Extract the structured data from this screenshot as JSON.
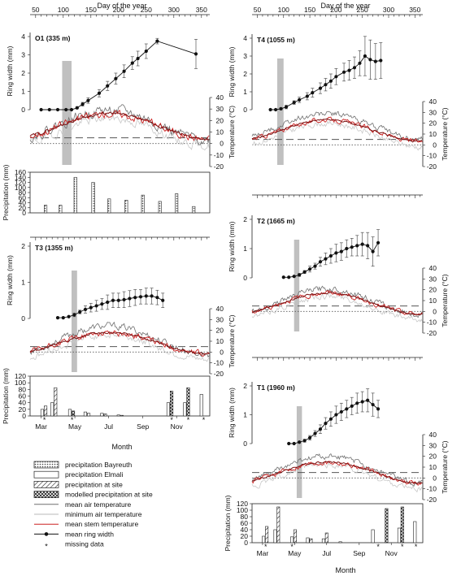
{
  "figure": {
    "top_axis_label": "Day of the year",
    "bottom_axis_label": "Month",
    "axis_labels": {
      "ring_width": "Ring width (mm)",
      "precipitation": "Precipitation (mm)",
      "temperature": "Temperature (°C)"
    },
    "legend": [
      {
        "label": "precipitation Bayreuth",
        "kind": "bar-dots"
      },
      {
        "label": "precipitation Elmali",
        "kind": "bar-open"
      },
      {
        "label": "precipitation at site",
        "kind": "bar-hatch"
      },
      {
        "label": "modelled precipitation at site",
        "kind": "bar-cross"
      },
      {
        "label": "mean air temperature",
        "kind": "line-dark"
      },
      {
        "label": "minimum air temperature",
        "kind": "line-light"
      },
      {
        "label": "mean stem temperature",
        "kind": "line-red"
      },
      {
        "label": "mean ring width",
        "kind": "line-dot"
      },
      {
        "label": "missing data",
        "kind": "star"
      }
    ],
    "colors": {
      "mean_air": "#6e6e6e",
      "min_air": "#c8c8c8",
      "stem": "#cc2020",
      "stem_dark": "#7a1010",
      "window": "#c0c0c0",
      "ring": "#111111"
    }
  },
  "chart_data": [
    {
      "type": "line",
      "panel": "O1",
      "title": "O1 (335 m)",
      "x_label": "Day of the year",
      "x_ticks": [
        50,
        100,
        150,
        200,
        250,
        300,
        350
      ],
      "ring_width": {
        "ylabel": "Ring width (mm)",
        "ylim": [
          0,
          4
        ],
        "yticks": [
          0,
          1,
          2,
          3,
          4
        ],
        "x": [
          60,
          75,
          90,
          105,
          115,
          125,
          135,
          145,
          165,
          180,
          195,
          210,
          225,
          235,
          250,
          270,
          340
        ],
        "y": [
          0,
          0,
          0,
          0,
          0,
          0.1,
          0.3,
          0.5,
          0.9,
          1.3,
          1.7,
          2.1,
          2.55,
          2.8,
          3.2,
          3.75,
          3.05
        ],
        "err": [
          0,
          0,
          0,
          0,
          0,
          0.05,
          0.1,
          0.15,
          0.2,
          0.25,
          0.3,
          0.35,
          0.35,
          0.4,
          0.4,
          0.15,
          0.8
        ]
      },
      "temperature": {
        "ylabel": "Temperature (°C)",
        "ylim": [
          -20,
          40
        ],
        "yticks": [
          -20,
          -10,
          0,
          10,
          20,
          30,
          40
        ],
        "mean_air": {
          "base": 16,
          "amp": 13,
          "noise": 8
        },
        "min_air": {
          "base": 10,
          "amp": 12,
          "noise": 7
        },
        "stem": {
          "base": 15,
          "amp": 11,
          "noise": 6
        },
        "dashed_ref": 5,
        "dotted_ref": 0
      },
      "window": [
        98,
        115
      ],
      "precipitation": {
        "ylabel": "Precipitation (mm)",
        "ylim": [
          0,
          160
        ],
        "yticks": [
          0,
          20,
          40,
          60,
          80,
          100,
          120,
          140,
          160
        ],
        "bars": [
          {
            "x": 68,
            "v": 30,
            "kind": "dots"
          },
          {
            "x": 95,
            "v": 30,
            "kind": "dots"
          },
          {
            "x": 122,
            "v": 140,
            "kind": "dots"
          },
          {
            "x": 154,
            "v": 120,
            "kind": "dots"
          },
          {
            "x": 183,
            "v": 55,
            "kind": "dots"
          },
          {
            "x": 214,
            "v": 50,
            "kind": "dots"
          },
          {
            "x": 244,
            "v": 70,
            "kind": "dots"
          },
          {
            "x": 275,
            "v": 45,
            "kind": "dots"
          },
          {
            "x": 305,
            "v": 75,
            "kind": "dots"
          },
          {
            "x": 336,
            "v": 25,
            "kind": "dots"
          }
        ]
      }
    },
    {
      "type": "line",
      "panel": "T3",
      "title": "T3 (1355 m)",
      "ring_width": {
        "ylabel": "Ring width (mm)",
        "ylim": [
          0,
          2
        ],
        "yticks": [
          0,
          1,
          2
        ],
        "x": [
          90,
          100,
          110,
          120,
          130,
          140,
          150,
          160,
          170,
          180,
          190,
          200,
          210,
          220,
          230,
          240,
          250,
          260,
          270,
          280
        ],
        "y": [
          0.02,
          0.02,
          0.05,
          0.1,
          0.18,
          0.25,
          0.3,
          0.35,
          0.4,
          0.45,
          0.5,
          0.5,
          0.52,
          0.55,
          0.58,
          0.6,
          0.62,
          0.62,
          0.58,
          0.5
        ],
        "err": [
          0,
          0,
          0,
          0.05,
          0.05,
          0.1,
          0.12,
          0.15,
          0.15,
          0.2,
          0.2,
          0.2,
          0.22,
          0.22,
          0.22,
          0.2,
          0.22,
          0.22,
          0.2,
          0.2
        ]
      },
      "temperature": {
        "ylabel": "Temperature (°C)",
        "ylim": [
          -20,
          40
        ],
        "yticks": [
          -20,
          -10,
          0,
          10,
          20,
          30,
          40
        ],
        "mean_air": {
          "base": 11,
          "amp": 13,
          "noise": 6
        },
        "min_air": {
          "base": 4,
          "amp": 12,
          "noise": 6
        },
        "stem": {
          "base": 8,
          "amp": 10,
          "noise": 5
        },
        "dashed_ref": 5,
        "dotted_ref": 0
      },
      "window": [
        115,
        125
      ],
      "precipitation": {
        "ylabel": "Precipitation (mm)",
        "ylim": [
          0,
          120
        ],
        "yticks": [
          0,
          20,
          40,
          60,
          80,
          100,
          120
        ],
        "bars": [
          {
            "x": 62,
            "v": 20,
            "kind": "open"
          },
          {
            "x": 68,
            "v": 30,
            "kind": "hatch"
          },
          {
            "x": 80,
            "v": 40,
            "kind": "open"
          },
          {
            "x": 86,
            "v": 85,
            "kind": "hatch"
          },
          {
            "x": 112,
            "v": 20,
            "kind": "open"
          },
          {
            "x": 118,
            "v": 15,
            "kind": "cross"
          },
          {
            "x": 140,
            "v": 12,
            "kind": "open"
          },
          {
            "x": 146,
            "v": 8,
            "kind": "hatch"
          },
          {
            "x": 170,
            "v": 8,
            "kind": "open"
          },
          {
            "x": 176,
            "v": 6,
            "kind": "hatch"
          },
          {
            "x": 200,
            "v": 3,
            "kind": "open"
          },
          {
            "x": 206,
            "v": 2,
            "kind": "hatch"
          },
          {
            "x": 290,
            "v": 40,
            "kind": "open"
          },
          {
            "x": 296,
            "v": 75,
            "kind": "cross"
          },
          {
            "x": 320,
            "v": 40,
            "kind": "open"
          },
          {
            "x": 326,
            "v": 85,
            "kind": "cross"
          },
          {
            "x": 350,
            "v": 65,
            "kind": "open"
          }
        ],
        "missing_x": [
          66,
          116,
          296,
          326,
          354
        ]
      },
      "month_ticks": [
        "Mar",
        "May",
        "Jul",
        "Sep",
        "Nov"
      ],
      "month_x": [
        60,
        121,
        182,
        244,
        305
      ],
      "x_label": "Month"
    },
    {
      "type": "line",
      "panel": "T4",
      "title": "T4 (1055 m)",
      "x_label": "Day of the year",
      "x_ticks": [
        50,
        100,
        150,
        200,
        250,
        300,
        350
      ],
      "ring_width": {
        "ylabel": "Ring width (mm)",
        "ylim": [
          0,
          4
        ],
        "yticks": [
          0,
          1,
          2,
          3,
          4
        ],
        "x": [
          75,
          85,
          95,
          105,
          120,
          130,
          145,
          155,
          170,
          180,
          190,
          200,
          215,
          225,
          235,
          245,
          255,
          265,
          275,
          285
        ],
        "y": [
          0,
          0,
          0.05,
          0.15,
          0.4,
          0.55,
          0.75,
          0.95,
          1.2,
          1.4,
          1.6,
          1.85,
          2.1,
          2.2,
          2.35,
          2.6,
          3.0,
          2.8,
          2.7,
          2.75
        ],
        "err": [
          0,
          0,
          0.05,
          0.1,
          0.1,
          0.15,
          0.2,
          0.25,
          0.3,
          0.35,
          0.4,
          0.45,
          0.5,
          0.55,
          0.6,
          0.7,
          1.1,
          1.1,
          1.0,
          1.0
        ]
      },
      "temperature": {
        "ylabel": "Temperature (°C)",
        "ylim": [
          -20,
          40
        ],
        "yticks": [
          -20,
          -10,
          0,
          10,
          20,
          30,
          40
        ],
        "mean_air": {
          "base": 17,
          "amp": 12,
          "noise": 5
        },
        "min_air": {
          "base": 9,
          "amp": 11,
          "noise": 5
        },
        "stem": {
          "base": 13,
          "amp": 10,
          "noise": 4
        },
        "dashed_ref": 5,
        "dotted_ref": 0
      },
      "window": [
        88,
        100
      ]
    },
    {
      "type": "line",
      "panel": "T2",
      "title": "T2 (1665 m)",
      "ring_width": {
        "ylabel": "Ring width (mm)",
        "ylim": [
          0,
          2
        ],
        "yticks": [
          0,
          1,
          2
        ],
        "x": [
          100,
          110,
          120,
          130,
          140,
          150,
          160,
          170,
          180,
          190,
          200,
          210,
          220,
          230,
          240,
          250,
          260,
          270,
          280
        ],
        "y": [
          0.02,
          0.02,
          0.05,
          0.1,
          0.2,
          0.3,
          0.4,
          0.55,
          0.65,
          0.75,
          0.85,
          0.9,
          1.0,
          1.05,
          1.1,
          1.15,
          1.1,
          0.9,
          1.2
        ],
        "err": [
          0,
          0,
          0.02,
          0.05,
          0.05,
          0.1,
          0.1,
          0.15,
          0.2,
          0.25,
          0.3,
          0.3,
          0.3,
          0.3,
          0.35,
          0.4,
          0.45,
          0.5,
          0.45
        ]
      },
      "temperature": {
        "ylabel": "Temperature (°C)",
        "ylim": [
          -20,
          40
        ],
        "yticks": [
          -20,
          -10,
          0,
          10,
          20,
          30,
          40
        ],
        "mean_air": {
          "base": 9,
          "amp": 12,
          "noise": 5
        },
        "min_air": {
          "base": 3,
          "amp": 11,
          "noise": 5
        },
        "stem": {
          "base": 7,
          "amp": 10,
          "noise": 4
        },
        "dashed_ref": 5,
        "dotted_ref": 0
      },
      "window": [
        120,
        130
      ]
    },
    {
      "type": "line",
      "panel": "T1",
      "title": "T1 (1960 m)",
      "ring_width": {
        "ylabel": "Ring width (mm)",
        "ylim": [
          0,
          2
        ],
        "yticks": [
          0,
          1,
          2
        ],
        "x": [
          110,
          120,
          130,
          140,
          150,
          160,
          170,
          180,
          190,
          200,
          210,
          220,
          230,
          240,
          250,
          260,
          270,
          280
        ],
        "y": [
          0,
          0,
          0.05,
          0.1,
          0.2,
          0.35,
          0.5,
          0.7,
          0.85,
          1.0,
          1.1,
          1.2,
          1.3,
          1.4,
          1.45,
          1.5,
          1.35,
          1.2
        ],
        "err": [
          0,
          0,
          0.02,
          0.05,
          0.08,
          0.1,
          0.15,
          0.2,
          0.25,
          0.3,
          0.3,
          0.3,
          0.3,
          0.35,
          0.35,
          0.4,
          0.4,
          0.3
        ]
      },
      "temperature": {
        "ylabel": "Temperature (°C)",
        "ylim": [
          -20,
          40
        ],
        "yticks": [
          -20,
          -10,
          0,
          10,
          20,
          30,
          40
        ],
        "mean_air": {
          "base": 8,
          "amp": 12,
          "noise": 5
        },
        "min_air": {
          "base": 1,
          "amp": 11,
          "noise": 5
        },
        "stem": {
          "base": 5,
          "amp": 10,
          "noise": 4
        },
        "dashed_ref": 5,
        "dotted_ref": 0
      },
      "window": [
        125,
        135
      ],
      "precipitation": {
        "ylabel": "Precipitation (mm)",
        "ylim": [
          0,
          120
        ],
        "yticks": [
          0,
          20,
          40,
          60,
          80,
          100,
          120
        ],
        "bars": [
          {
            "x": 62,
            "v": 20,
            "kind": "open"
          },
          {
            "x": 68,
            "v": 50,
            "kind": "hatch"
          },
          {
            "x": 84,
            "v": 40,
            "kind": "open"
          },
          {
            "x": 90,
            "v": 110,
            "kind": "hatch"
          },
          {
            "x": 116,
            "v": 18,
            "kind": "open"
          },
          {
            "x": 122,
            "v": 40,
            "kind": "hatch"
          },
          {
            "x": 146,
            "v": 15,
            "kind": "open"
          },
          {
            "x": 152,
            "v": 12,
            "kind": "hatch"
          },
          {
            "x": 176,
            "v": 12,
            "kind": "open"
          },
          {
            "x": 182,
            "v": 30,
            "kind": "hatch"
          },
          {
            "x": 208,
            "v": 3,
            "kind": "open"
          },
          {
            "x": 270,
            "v": 40,
            "kind": "open"
          },
          {
            "x": 296,
            "v": 105,
            "kind": "cross"
          },
          {
            "x": 320,
            "v": 45,
            "kind": "open"
          },
          {
            "x": 326,
            "v": 110,
            "kind": "cross"
          },
          {
            "x": 350,
            "v": 65,
            "kind": "open"
          }
        ],
        "missing_x": [
          66,
          116,
          280,
          326,
          352
        ]
      },
      "month_ticks": [
        "Mar",
        "May",
        "Jul",
        "Sep",
        "Nov"
      ],
      "month_x": [
        60,
        121,
        182,
        244,
        305
      ],
      "x_label": "Month"
    }
  ]
}
